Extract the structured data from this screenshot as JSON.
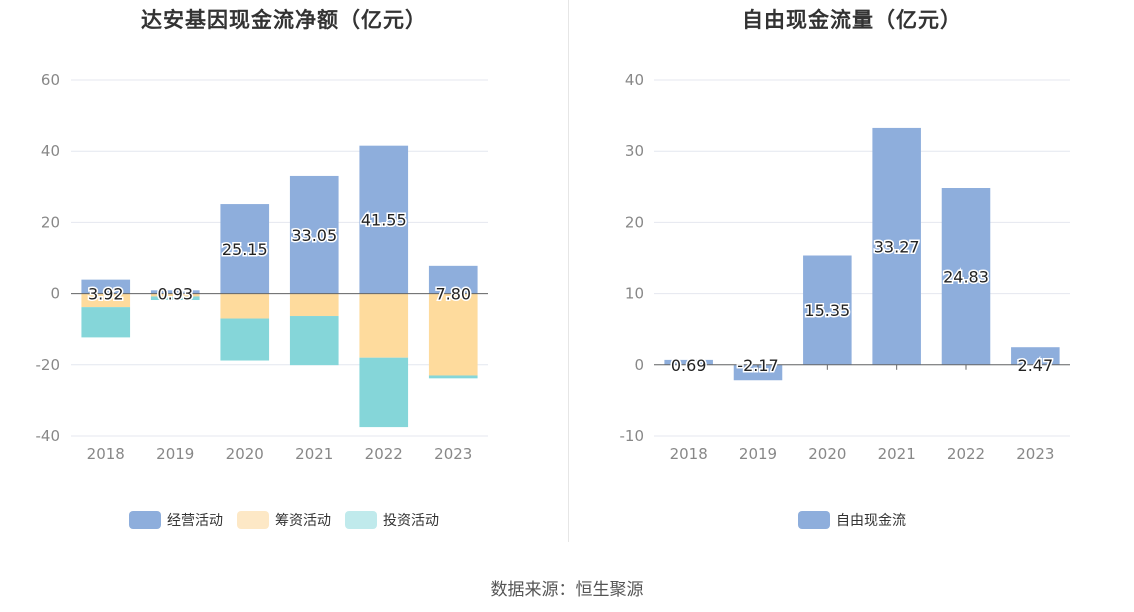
{
  "chart_data": [
    {
      "type": "bar",
      "stacked": true,
      "title": "达安基因现金流净额（亿元）",
      "categories": [
        "2018",
        "2019",
        "2020",
        "2021",
        "2022",
        "2023"
      ],
      "series": [
        {
          "name": "经营活动",
          "color": "#8eaedc",
          "values": [
            3.92,
            0.93,
            25.15,
            33.05,
            41.55,
            7.8
          ],
          "labels": [
            "3.92",
            "0.93",
            "25.15",
            "33.05",
            "41.55",
            "7.80"
          ]
        },
        {
          "name": "筹资活动",
          "color": "#fedb9d",
          "legend_color": "#fde8c6",
          "values": [
            -3.8,
            -0.8,
            -7.0,
            -6.3,
            -18.0,
            -23.0
          ]
        },
        {
          "name": "投资活动",
          "color": "#85d6d9",
          "legend_color": "#c0eaec",
          "values": [
            -8.5,
            -1.0,
            -11.8,
            -13.8,
            -19.5,
            -0.8
          ]
        }
      ],
      "yticks": [
        "60",
        "40",
        "20",
        "0",
        "-20",
        "-40"
      ],
      "ylim": [
        -40,
        60
      ],
      "grid": true,
      "legend_position": "bottom"
    },
    {
      "type": "bar",
      "title": "自由现金流量（亿元）",
      "categories": [
        "2018",
        "2019",
        "2020",
        "2021",
        "2022",
        "2023"
      ],
      "series": [
        {
          "name": "自由现金流",
          "color": "#8eaedc",
          "values": [
            0.69,
            -2.17,
            15.35,
            33.27,
            24.83,
            2.47
          ],
          "labels": [
            "0.69",
            "-2.17",
            "15.35",
            "33.27",
            "24.83",
            "2.47"
          ]
        }
      ],
      "yticks": [
        "40",
        "30",
        "20",
        "10",
        "0",
        "-10"
      ],
      "ylim": [
        -10,
        40
      ],
      "grid": true,
      "legend_position": "bottom"
    }
  ],
  "source": "数据来源：恒生聚源"
}
